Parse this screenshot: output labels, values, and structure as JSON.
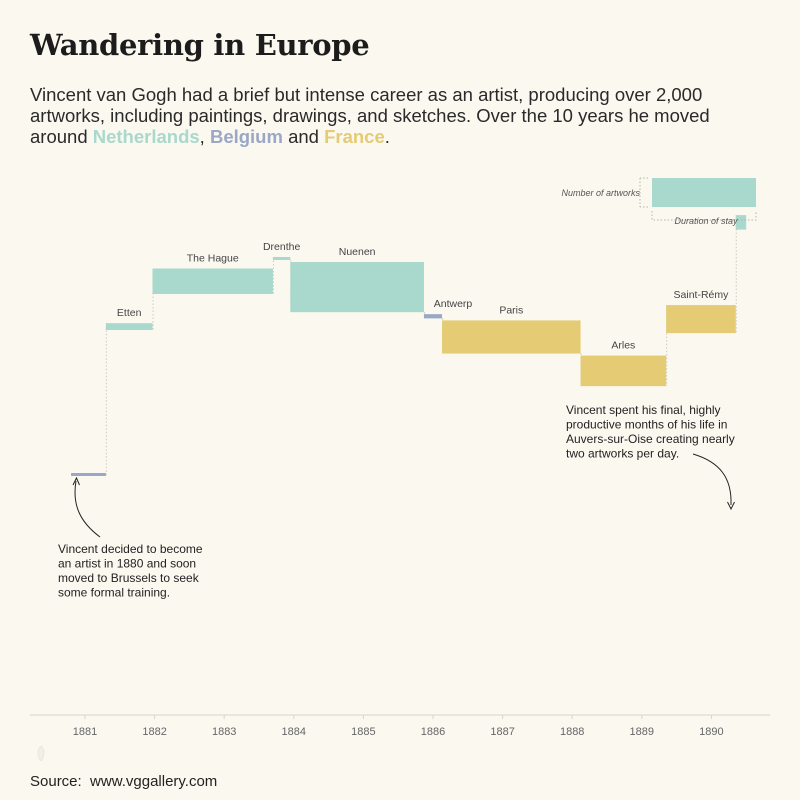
{
  "header": {
    "title": "Wandering in Europe",
    "subtitle_prefix": "Vincent van Gogh had a brief but intense career as an artist, producing over 2,000 artworks, including paintings, drawings, and sketches. Over the 10 years he moved around ",
    "country_netherlands": "Netherlands",
    "sep_comma": ", ",
    "country_belgium": "Belgium",
    "sep_and": " and ",
    "country_france": "France",
    "subtitle_end": "."
  },
  "colors": {
    "Netherlands": "#a9d8cc",
    "Belgium": "#9aa7c6",
    "France": "#e4cb74",
    "background": "#fbf8f0"
  },
  "chart_data": {
    "type": "bar",
    "description_kind": "waterfall-like cascade: bar width = duration of stay, bar height = number of artworks",
    "x_axis": {
      "min": 1880.5,
      "max": 1891,
      "ticks": [
        "1881",
        "1882",
        "1883",
        "1884",
        "1885",
        "1886",
        "1887",
        "1888",
        "1889",
        "1890"
      ]
    },
    "legend": {
      "height_label": "Number of artworks",
      "width_label": "Duration of stay",
      "position": "top-right"
    },
    "stays": [
      {
        "place": "Brussels",
        "country": "Belgium",
        "start": 1880.8,
        "end": 1881.3,
        "artworks": 2,
        "label": ""
      },
      {
        "place": "Etten",
        "country": "Netherlands",
        "start": 1881.3,
        "end": 1881.97,
        "artworks": 8,
        "label": "Etten"
      },
      {
        "place": "The Hague",
        "country": "Netherlands",
        "start": 1881.97,
        "end": 1883.7,
        "artworks": 30,
        "label": "The Hague"
      },
      {
        "place": "Drenthe",
        "country": "Netherlands",
        "start": 1883.7,
        "end": 1883.95,
        "artworks": 2,
        "label": "Drenthe"
      },
      {
        "place": "Nuenen",
        "country": "Netherlands",
        "start": 1883.95,
        "end": 1885.87,
        "artworks": 59,
        "label": "Nuenen"
      },
      {
        "place": "Antwerp",
        "country": "Belgium",
        "start": 1885.87,
        "end": 1886.13,
        "artworks": 5,
        "label": "Antwerp"
      },
      {
        "place": "Paris",
        "country": "France",
        "start": 1886.13,
        "end": 1888.12,
        "artworks": 39,
        "label": "Paris"
      },
      {
        "place": "Arles",
        "country": "France",
        "start": 1888.12,
        "end": 1889.35,
        "artworks": 36,
        "label": "Arles"
      },
      {
        "place": "Saint-Rémy",
        "country": "France",
        "start": 1889.35,
        "end": 1890.35,
        "artworks": 33,
        "label": "Saint-Rémy"
      },
      {
        "place": "Auvers-sur-Oise",
        "country": "Netherlands",
        "start": 1890.35,
        "end": 1890.5,
        "artworks": 17,
        "label": ""
      }
    ],
    "annotations": {
      "start_note": [
        "Vincent decided to become",
        "an artist in 1880 and soon",
        "moved to Brussels to seek",
        "some formal training."
      ],
      "end_note": [
        "Vincent spent his final, highly",
        "productive months of his life in",
        "Auvers-sur-Oise creating nearly",
        "two artworks per day."
      ]
    }
  },
  "footer": {
    "source_label": "Source:",
    "source_url": "www.vggallery.com"
  }
}
